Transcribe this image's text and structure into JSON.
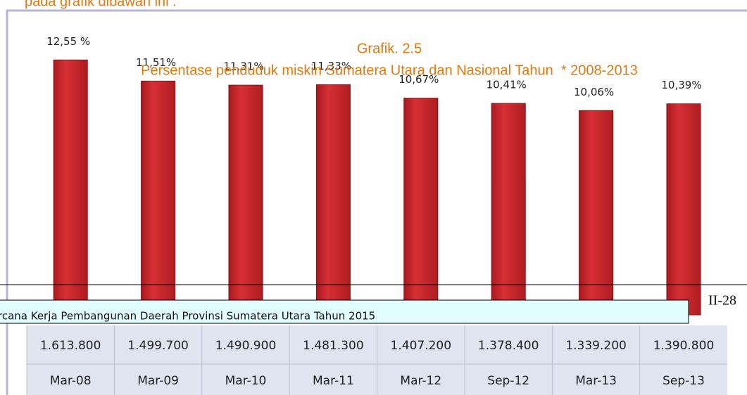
{
  "intro": "pada grafik dibawah ini :",
  "chart_data": {
    "type": "bar",
    "title": "Grafik. 2.5",
    "subtitle": "Persentase penduduk miskin Sumatera Utara dan Nasional Tahun  * 2008-2013",
    "categories": [
      "Mar-08",
      "Mar-09",
      "Mar-10",
      "Mar-11",
      "Mar-12",
      "Sep-12",
      "Mar-13",
      "Sep-13"
    ],
    "values": [
      12.55,
      11.51,
      11.31,
      11.33,
      10.67,
      10.41,
      10.06,
      10.39
    ],
    "value_labels": [
      "12,55 %",
      "11,51%",
      "11,31%",
      "11,33%",
      "10,67%",
      "10,41%",
      "10,06%",
      "10,39%"
    ],
    "counts": [
      "1.613.800",
      "1.499.700",
      "1.490.900",
      "1.481.300",
      "1.407.200",
      "1.378.400",
      "1.339.200",
      "1.390.800"
    ],
    "color": "#c9262b"
  },
  "footer": "rcana Kerja Pembangunan Daerah Provinsi Sumatera Utara Tahun 2015",
  "page_number": "II-28"
}
